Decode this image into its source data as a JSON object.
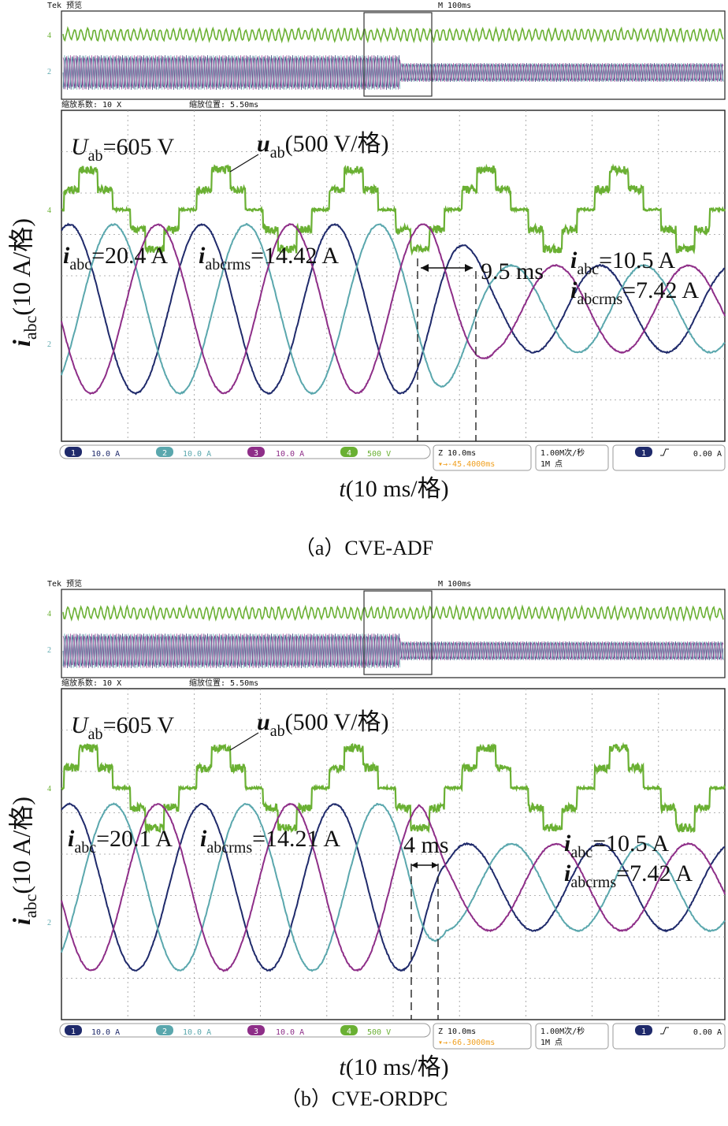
{
  "colors": {
    "ch1": "#1f2a6b",
    "ch2": "#5aa7ad",
    "ch3": "#8e2e88",
    "ch4": "#6ab033",
    "grid": "#9a9a9a",
    "frame": "#222222",
    "trigger": "#f0a020"
  },
  "common": {
    "tek_label": "Tek 预览",
    "timebase": "M 100ms",
    "zoom_factor": "缩放系数: 10 X",
    "zoom_position": "缩放位置: 5.50ms",
    "ylabel_main": "i",
    "ylabel_sub": "abc",
    "ylabel_unit": "(10 A/格)",
    "xlabel_var": "t",
    "xlabel_unit": "(10 ms/格)",
    "ch_labels": [
      "10.0 A",
      "10.0 A",
      "10.0 A",
      "500 V"
    ],
    "ch_nums": [
      "1",
      "2",
      "3",
      "4"
    ],
    "zoom_timebase": "Z 10.0ms",
    "sample_rate": "1.00M次/秒",
    "record_length": "1M 点",
    "trig_ch": "1",
    "trig_level": "0.00 A",
    "marker_4": "4",
    "marker_2": "2"
  },
  "panels": [
    {
      "caption": "（a）CVE-ADF",
      "trigger_pos": "▾→-45.4000ms",
      "ann_uab_sym": "U",
      "ann_uab_sub": "ab",
      "ann_uab_val": "=605 V",
      "ann_uab_scale_sym": "u",
      "ann_uab_scale_sub": "ab",
      "ann_uab_scale": "(500 V/格)",
      "ann_i1_sym": "i",
      "ann_i1_sub": "abc",
      "ann_i1_val": "=20.4 A",
      "ann_i1rms_sym": "i",
      "ann_i1rms_sub": "abcrms",
      "ann_i1rms_val": "=14.42 A",
      "ann_delay": "9.5 ms",
      "ann_i2_sym": "i",
      "ann_i2_sub": "abc",
      "ann_i2_val": "=10.5 A",
      "ann_i2rms_sym": "i",
      "ann_i2rms_sub": "abcrms",
      "ann_i2rms_val": "=7.42 A"
    },
    {
      "caption": "（b）CVE-ORDPC",
      "trigger_pos": "▾→-66.3000ms",
      "ann_uab_sym": "U",
      "ann_uab_sub": "ab",
      "ann_uab_val": "=605 V",
      "ann_uab_scale_sym": "u",
      "ann_uab_scale_sub": "ab",
      "ann_uab_scale": "(500 V/格)",
      "ann_i1_sym": "i",
      "ann_i1_sub": "abc",
      "ann_i1_val": "=20.1 A",
      "ann_i1rms_sym": "i",
      "ann_i1rms_sub": "abcrms",
      "ann_i1rms_val": "=14.21 A",
      "ann_delay": "4 ms",
      "ann_i2_sym": "i",
      "ann_i2_sub": "abc",
      "ann_i2_val": "=10.5 A",
      "ann_i2rms_sym": "i",
      "ann_i2rms_sub": "abcrms",
      "ann_i2rms_val": "=7.42 A"
    }
  ],
  "chart_data": [
    {
      "type": "line",
      "title": "（a）CVE-ADF",
      "xlabel": "t(10 ms/格)",
      "ylabel": "iabc(10 A/格)",
      "x_unit": "ms",
      "x_divisions": 10,
      "y_divisions": 8,
      "grid": true,
      "voltage": {
        "name": "uab",
        "scale": "500 V/格",
        "peak_V": 605,
        "levels": 5
      },
      "currents": {
        "freq_Hz": 50,
        "amp_before_A": 20.4,
        "amp_after_A": 10.5,
        "rms_before_A": 14.42,
        "rms_after_A": 7.42,
        "step_time_ms": 56,
        "settle_ms": 9.5,
        "phases_deg": [
          0,
          -120,
          120
        ]
      }
    },
    {
      "type": "line",
      "title": "（b）CVE-ORDPC",
      "xlabel": "t(10 ms/格)",
      "ylabel": "iabc(10 A/格)",
      "x_unit": "ms",
      "x_divisions": 10,
      "y_divisions": 8,
      "grid": true,
      "voltage": {
        "name": "uab",
        "scale": "500 V/格",
        "peak_V": 605,
        "levels": 5
      },
      "currents": {
        "freq_Hz": 50,
        "amp_before_A": 20.1,
        "amp_after_A": 10.5,
        "rms_before_A": 14.21,
        "rms_after_A": 7.42,
        "step_time_ms": 54,
        "settle_ms": 4,
        "phases_deg": [
          0,
          -120,
          120
        ]
      }
    }
  ]
}
